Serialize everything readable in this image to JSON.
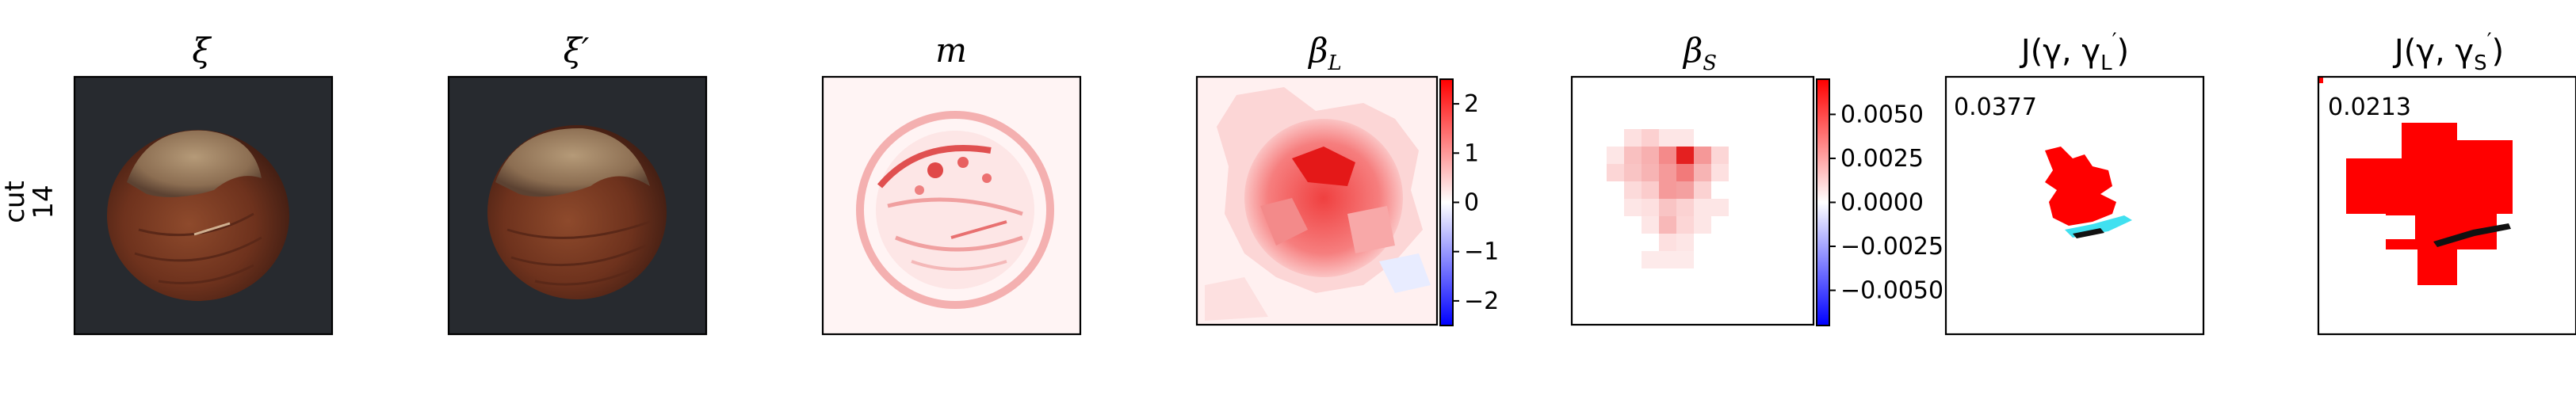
{
  "row_label": {
    "line1": "cut",
    "line2": "14"
  },
  "panels": [
    {
      "id": "xi",
      "title": {
        "main": "ξ",
        "sub": "",
        "prime": ""
      }
    },
    {
      "id": "xi-prime",
      "title": {
        "main": "ξ",
        "sub": "",
        "prime": "′"
      }
    },
    {
      "id": "m",
      "title": {
        "main": "m",
        "sub": "",
        "prime": ""
      }
    },
    {
      "id": "beta-l",
      "title": {
        "main": "β",
        "sub": "L",
        "prime": ""
      }
    },
    {
      "id": "beta-s",
      "title": {
        "main": "β",
        "sub": "S",
        "prime": ""
      }
    },
    {
      "id": "j-l",
      "title": {
        "main": "J(γ, γ",
        "sub": "L",
        "prime": "′",
        "close": ")"
      },
      "score": "0.0377"
    },
    {
      "id": "j-s",
      "title": {
        "main": "J(γ, γ",
        "sub": "S",
        "prime": "′",
        "close": ")"
      },
      "score": "0.0213"
    }
  ],
  "colorbars": [
    {
      "id": "beta-l-colorbar",
      "range": [
        -2.5,
        2.5
      ],
      "ticks": [
        2,
        1,
        0,
        -1,
        -2
      ],
      "tick_labels": [
        "2",
        "1",
        "0",
        "−1",
        "−2"
      ]
    },
    {
      "id": "beta-s-colorbar",
      "range": [
        -0.007,
        0.007
      ],
      "ticks": [
        0.005,
        0.0025,
        0.0,
        -0.0025,
        -0.005
      ],
      "tick_labels": [
        "0.0050",
        "0.0025",
        "0.0000",
        "−0.0025",
        "−0.0050"
      ]
    }
  ],
  "colors": {
    "hazelnut_background": "#272a2f",
    "hazelnut_body": "#7a3a22",
    "hazelnut_cap": "#a08264",
    "mask_red": "#ff0000",
    "ground_truth_cyan": "#40e0f0",
    "overlap_black": "#111111",
    "colormap": [
      "#0000ff",
      "#ffffff",
      "#ff0000"
    ]
  }
}
